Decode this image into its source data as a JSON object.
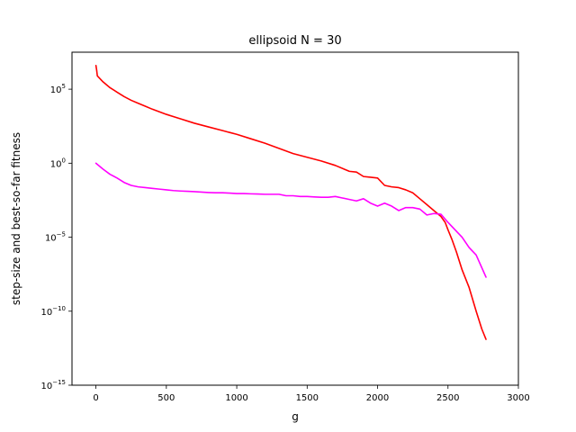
{
  "chart_data": {
    "type": "line",
    "title": "ellipsoid N = 30",
    "xlabel": "g",
    "ylabel": "step-size and best-so-far fitness",
    "xlim": [
      -170,
      3000
    ],
    "ylim_exponent": [
      -15,
      7.5
    ],
    "yscale": "log",
    "grid": false,
    "xticks": [
      {
        "value": 0,
        "label": "0"
      },
      {
        "value": 500,
        "label": "500"
      },
      {
        "value": 1000,
        "label": "1000"
      },
      {
        "value": 1500,
        "label": "1500"
      },
      {
        "value": 2000,
        "label": "2000"
      },
      {
        "value": 2500,
        "label": "2500"
      },
      {
        "value": 3000,
        "label": "3000"
      }
    ],
    "yticks": [
      {
        "exp": 5,
        "base": "10",
        "sup": "5"
      },
      {
        "exp": 0,
        "base": "10",
        "sup": "0"
      },
      {
        "exp": -5,
        "base": "10",
        "sup": "−5"
      },
      {
        "exp": -10,
        "base": "10",
        "sup": "−10"
      },
      {
        "exp": -15,
        "base": "10",
        "sup": "−15"
      }
    ],
    "series": [
      {
        "color": "#ff0000",
        "x": [
          0,
          5,
          10,
          50,
          100,
          150,
          200,
          250,
          300,
          350,
          400,
          500,
          600,
          700,
          800,
          900,
          1000,
          1100,
          1200,
          1300,
          1400,
          1500,
          1600,
          1700,
          1800,
          1850,
          1900,
          1950,
          2000,
          2050,
          2100,
          2150,
          2200,
          2250,
          2300,
          2350,
          2400,
          2450,
          2480,
          2500,
          2530,
          2560,
          2600,
          2650,
          2700,
          2740,
          2770
        ],
        "log10y": [
          6.6,
          6.3,
          5.9,
          5.5,
          5.1,
          4.8,
          4.5,
          4.25,
          4.05,
          3.85,
          3.65,
          3.3,
          3.0,
          2.7,
          2.45,
          2.2,
          1.95,
          1.65,
          1.35,
          1.0,
          0.65,
          0.4,
          0.15,
          -0.15,
          -0.55,
          -0.6,
          -0.9,
          -0.95,
          -1.0,
          -1.5,
          -1.6,
          -1.65,
          -1.8,
          -2.0,
          -2.4,
          -2.8,
          -3.2,
          -3.6,
          -4.0,
          -4.5,
          -5.2,
          -6.0,
          -7.2,
          -8.4,
          -10.0,
          -11.2,
          -11.9
        ]
      },
      {
        "color": "#ff00ff",
        "x": [
          0,
          50,
          100,
          150,
          200,
          250,
          300,
          350,
          400,
          450,
          500,
          550,
          600,
          650,
          700,
          750,
          800,
          850,
          900,
          950,
          1000,
          1050,
          1100,
          1150,
          1200,
          1250,
          1300,
          1350,
          1400,
          1450,
          1500,
          1550,
          1600,
          1650,
          1700,
          1750,
          1800,
          1850,
          1900,
          1950,
          2000,
          2050,
          2100,
          2150,
          2200,
          2250,
          2300,
          2350,
          2400,
          2450,
          2500,
          2550,
          2600,
          2650,
          2700,
          2770
        ],
        "log10y": [
          0.0,
          -0.4,
          -0.75,
          -1.0,
          -1.3,
          -1.5,
          -1.6,
          -1.65,
          -1.7,
          -1.75,
          -1.8,
          -1.85,
          -1.88,
          -1.9,
          -1.92,
          -1.95,
          -1.98,
          -2.0,
          -2.0,
          -2.02,
          -2.05,
          -2.05,
          -2.07,
          -2.08,
          -2.1,
          -2.1,
          -2.1,
          -2.2,
          -2.2,
          -2.25,
          -2.25,
          -2.28,
          -2.3,
          -2.3,
          -2.25,
          -2.35,
          -2.45,
          -2.55,
          -2.4,
          -2.7,
          -2.9,
          -2.7,
          -2.9,
          -3.2,
          -3.0,
          -3.0,
          -3.1,
          -3.5,
          -3.4,
          -3.45,
          -4.0,
          -4.5,
          -5.0,
          -5.7,
          -6.2,
          -7.7
        ]
      }
    ]
  }
}
